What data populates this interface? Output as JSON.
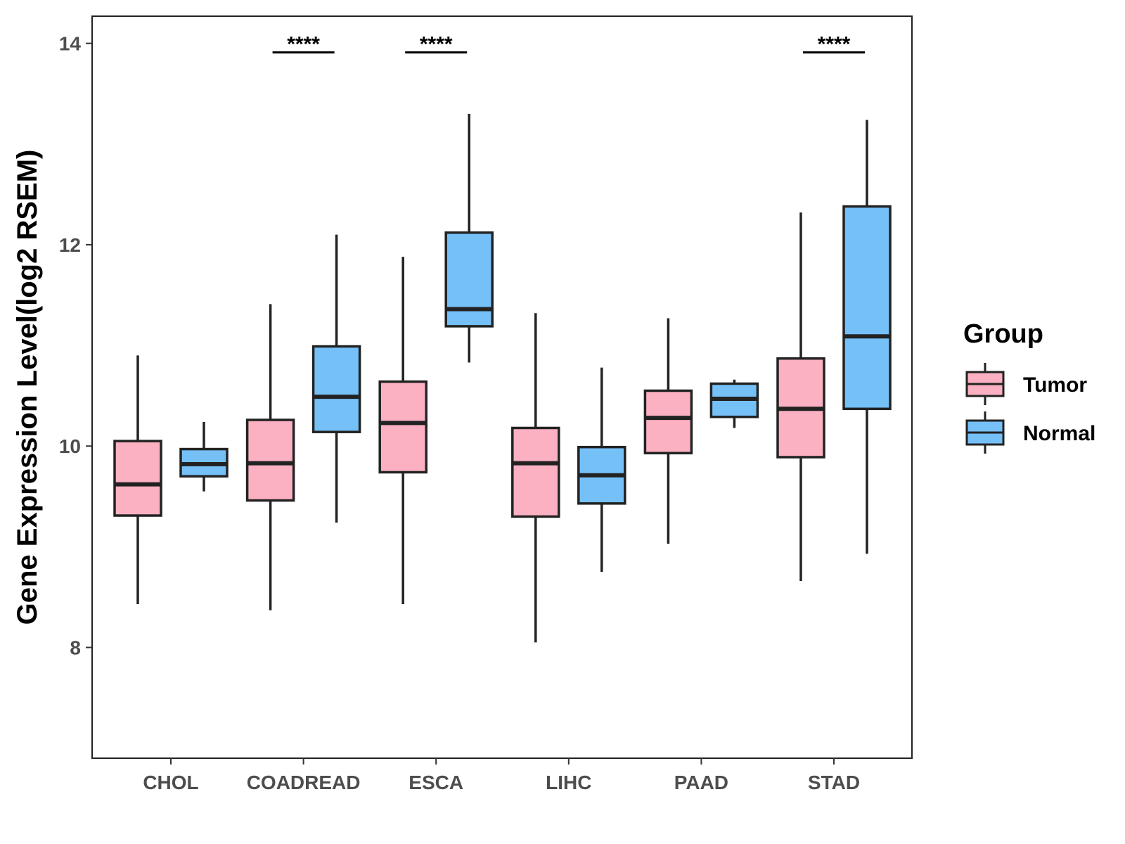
{
  "chart_data": {
    "type": "boxplot",
    "title": "",
    "xlabel": "",
    "ylabel": "Gene Expression Level(log2 RSEM)",
    "ylim": [
      6.9,
      14.27
    ],
    "yticks": [
      8,
      10,
      12,
      14
    ],
    "ytick_labels": [
      "8",
      "10",
      "12",
      "14"
    ],
    "categories": [
      "CHOL",
      "COADREAD",
      "ESCA",
      "LIHC",
      "PAAD",
      "STAD"
    ],
    "legend": {
      "title": "Group",
      "position": "right",
      "entries": [
        "Tumor",
        "Normal"
      ]
    },
    "series": [
      {
        "name": "Tumor",
        "color": "#fbb1c2",
        "boxes": [
          {
            "category": "CHOL",
            "whisker_low": 8.43,
            "q1": 9.31,
            "median": 9.62,
            "q3": 10.05,
            "whisker_high": 10.9
          },
          {
            "category": "COADREAD",
            "whisker_low": 8.37,
            "q1": 9.46,
            "median": 9.83,
            "q3": 10.26,
            "whisker_high": 11.41
          },
          {
            "category": "ESCA",
            "whisker_low": 8.43,
            "q1": 9.74,
            "median": 10.23,
            "q3": 10.64,
            "whisker_high": 11.88
          },
          {
            "category": "LIHC",
            "whisker_low": 8.05,
            "q1": 9.3,
            "median": 9.83,
            "q3": 10.18,
            "whisker_high": 11.32
          },
          {
            "category": "PAAD",
            "whisker_low": 9.03,
            "q1": 9.93,
            "median": 10.28,
            "q3": 10.55,
            "whisker_high": 11.27
          },
          {
            "category": "STAD",
            "whisker_low": 8.66,
            "q1": 9.89,
            "median": 10.37,
            "q3": 10.87,
            "whisker_high": 12.32
          }
        ]
      },
      {
        "name": "Normal",
        "color": "#76c0f8",
        "boxes": [
          {
            "category": "CHOL",
            "whisker_low": 9.55,
            "q1": 9.7,
            "median": 9.82,
            "q3": 9.97,
            "whisker_high": 10.24
          },
          {
            "category": "COADREAD",
            "whisker_low": 9.24,
            "q1": 10.14,
            "median": 10.49,
            "q3": 10.99,
            "whisker_high": 12.1
          },
          {
            "category": "ESCA",
            "whisker_low": 10.83,
            "q1": 11.19,
            "median": 11.36,
            "q3": 12.12,
            "whisker_high": 13.3
          },
          {
            "category": "LIHC",
            "whisker_low": 8.75,
            "q1": 9.43,
            "median": 9.71,
            "q3": 9.99,
            "whisker_high": 10.78
          },
          {
            "category": "PAAD",
            "whisker_low": 10.18,
            "q1": 10.29,
            "median": 10.47,
            "q3": 10.62,
            "whisker_high": 10.66
          },
          {
            "category": "STAD",
            "whisker_low": 8.93,
            "q1": 10.37,
            "median": 11.09,
            "q3": 12.38,
            "whisker_high": 13.24
          }
        ]
      }
    ],
    "annotations": [
      {
        "category": "COADREAD",
        "text": "****",
        "y": 13.91
      },
      {
        "category": "ESCA",
        "text": "****",
        "y": 13.91
      },
      {
        "category": "STAD",
        "text": "****",
        "y": 13.91
      }
    ]
  }
}
